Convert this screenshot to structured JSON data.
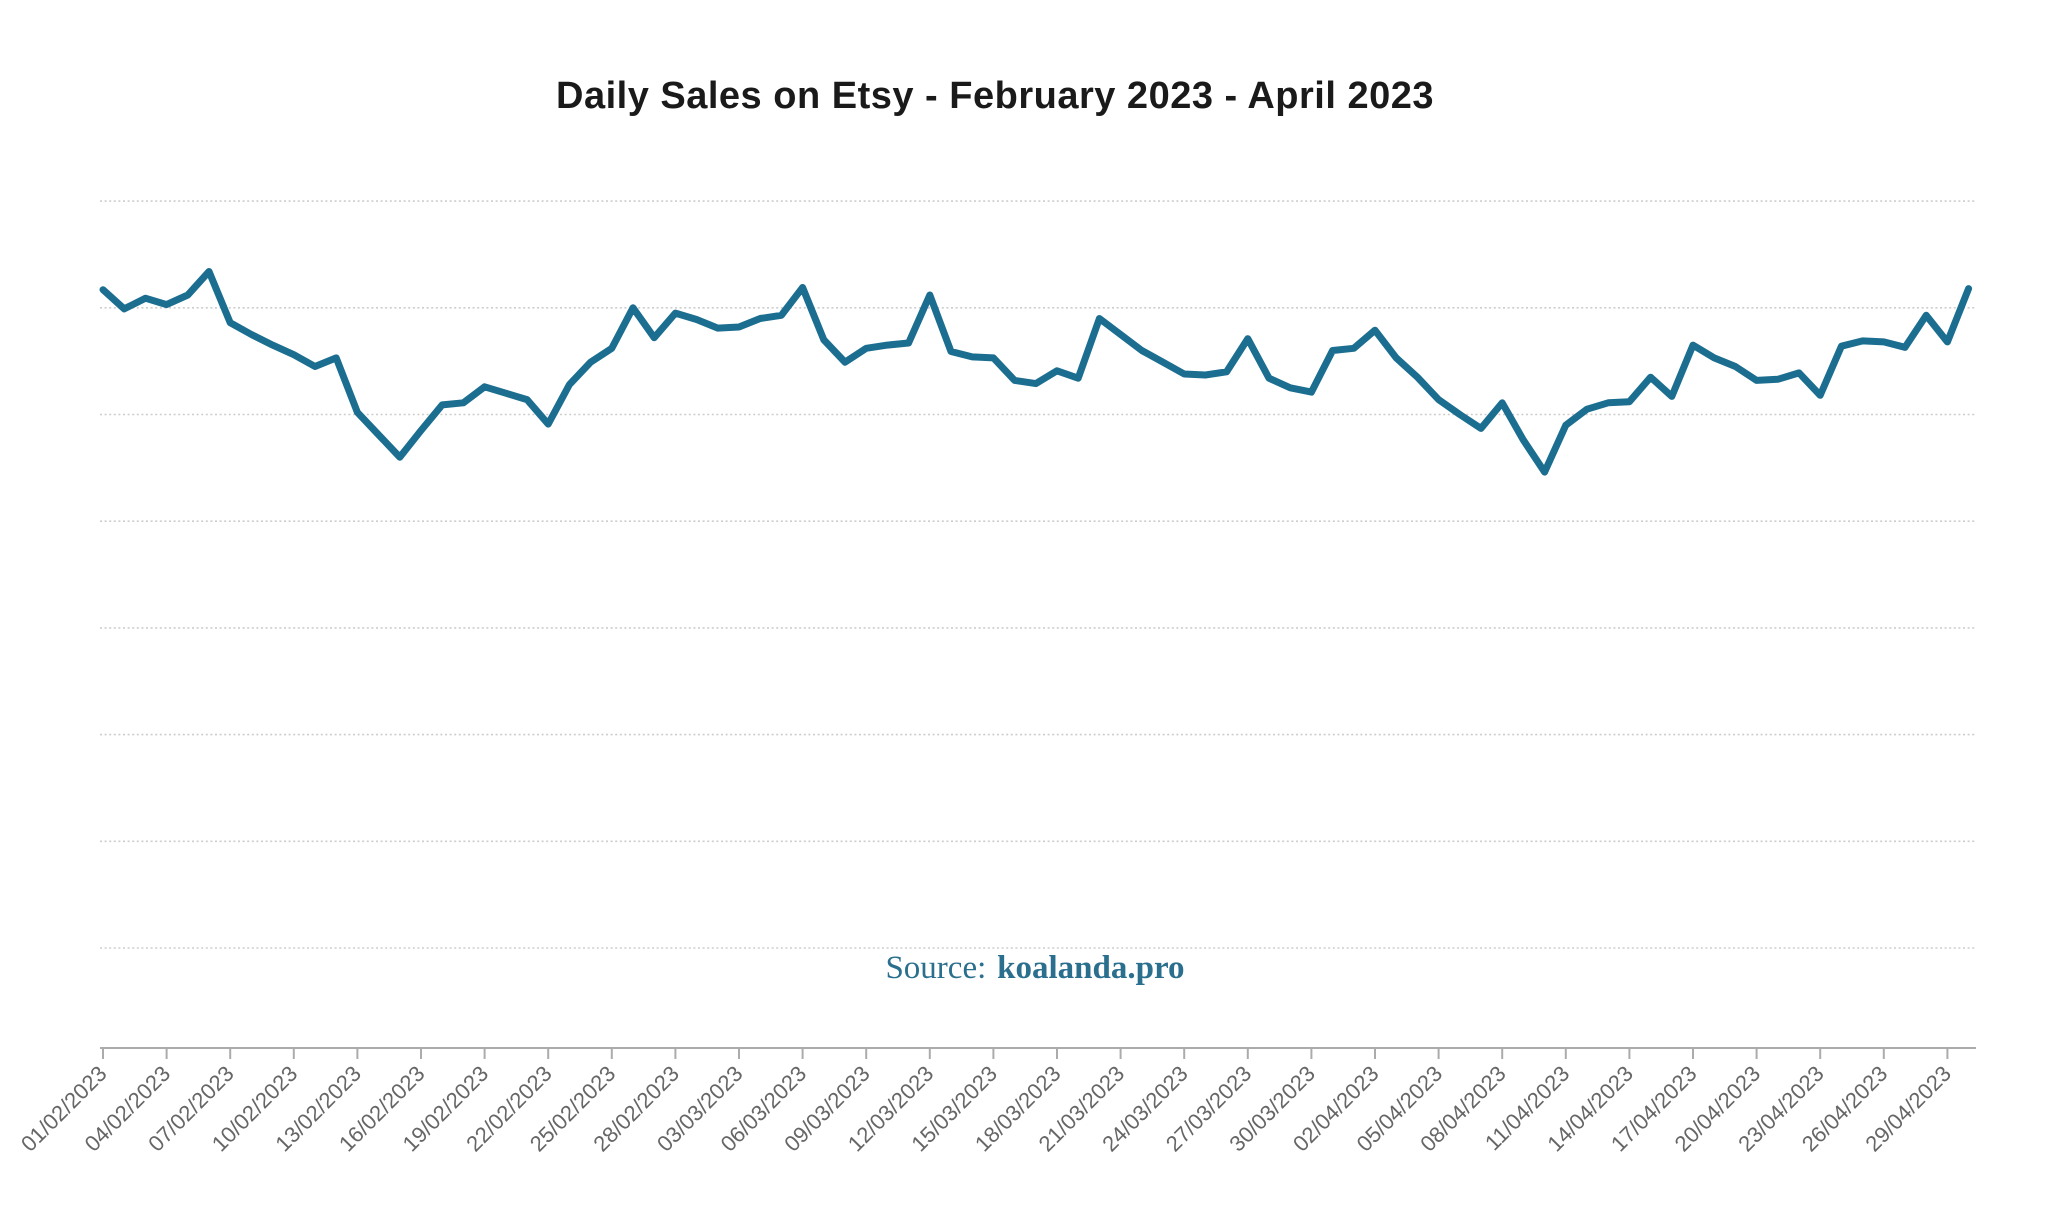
{
  "header": {
    "title": "Daily Sales on Etsy - February 2023 - April 2023"
  },
  "source": {
    "label": "Source:",
    "site": "koalanda.pro"
  },
  "chart_data": {
    "type": "line",
    "title": "Daily Sales on Etsy - February 2023 - April 2023",
    "xlabel": "",
    "ylabel": "",
    "y_axis_labeled": false,
    "y_unit": "unlabeled axis - values estimated in gridline units (one gridline step = 10)",
    "ylim": [
      0,
      80
    ],
    "y_gridlines": [
      0,
      10,
      20,
      30,
      40,
      50,
      60,
      70
    ],
    "grid": "horizontal-dotted",
    "legend": "none",
    "line_color": "#1C6E90",
    "gridline_color": "#CDCDCD",
    "axis_color": "#ABABAB",
    "tick_label_color": "#666666",
    "x_tick_every": 3,
    "x_tick_labels": [
      "01/02/2023",
      "04/02/2023",
      "07/02/2023",
      "10/02/2023",
      "13/02/2023",
      "16/02/2023",
      "19/02/2023",
      "22/02/2023",
      "25/02/2023",
      "28/02/2023",
      "03/03/2023",
      "06/03/2023",
      "09/03/2023",
      "12/03/2023",
      "15/03/2023",
      "18/03/2023",
      "21/03/2023",
      "24/03/2023",
      "27/03/2023",
      "30/03/2023",
      "02/04/2023",
      "05/04/2023",
      "08/04/2023",
      "11/04/2023",
      "14/04/2023",
      "17/04/2023",
      "20/04/2023",
      "23/04/2023",
      "26/04/2023",
      "29/04/2023"
    ],
    "x": [
      "01/02/2023",
      "02/02/2023",
      "03/02/2023",
      "04/02/2023",
      "05/02/2023",
      "06/02/2023",
      "07/02/2023",
      "08/02/2023",
      "09/02/2023",
      "10/02/2023",
      "11/02/2023",
      "12/02/2023",
      "13/02/2023",
      "14/02/2023",
      "15/02/2023",
      "16/02/2023",
      "17/02/2023",
      "18/02/2023",
      "19/02/2023",
      "20/02/2023",
      "21/02/2023",
      "22/02/2023",
      "23/02/2023",
      "24/02/2023",
      "25/02/2023",
      "26/02/2023",
      "27/02/2023",
      "28/02/2023",
      "01/03/2023",
      "02/03/2023",
      "03/03/2023",
      "04/03/2023",
      "05/03/2023",
      "06/03/2023",
      "07/03/2023",
      "08/03/2023",
      "09/03/2023",
      "10/03/2023",
      "11/03/2023",
      "12/03/2023",
      "13/03/2023",
      "14/03/2023",
      "15/03/2023",
      "16/03/2023",
      "17/03/2023",
      "18/03/2023",
      "19/03/2023",
      "20/03/2023",
      "21/03/2023",
      "22/03/2023",
      "23/03/2023",
      "24/03/2023",
      "25/03/2023",
      "26/03/2023",
      "27/03/2023",
      "28/03/2023",
      "29/03/2023",
      "30/03/2023",
      "31/03/2023",
      "01/04/2023",
      "02/04/2023",
      "03/04/2023",
      "04/04/2023",
      "05/04/2023",
      "06/04/2023",
      "07/04/2023",
      "08/04/2023",
      "09/04/2023",
      "10/04/2023",
      "11/04/2023",
      "12/04/2023",
      "13/04/2023",
      "14/04/2023",
      "15/04/2023",
      "16/04/2023",
      "17/04/2023",
      "18/04/2023",
      "19/04/2023",
      "20/04/2023",
      "21/04/2023",
      "22/04/2023",
      "23/04/2023",
      "24/04/2023",
      "25/04/2023",
      "26/04/2023",
      "27/04/2023",
      "28/04/2023",
      "29/04/2023",
      "30/04/2023"
    ],
    "values": [
      61.7,
      59.9,
      60.9,
      60.3,
      61.2,
      63.4,
      58.6,
      57.5,
      56.5,
      55.6,
      54.5,
      55.3,
      50.2,
      48.1,
      46.0,
      48.5,
      50.9,
      51.1,
      52.6,
      52.0,
      51.4,
      49.1,
      52.8,
      54.9,
      56.2,
      60.0,
      57.2,
      59.5,
      58.9,
      58.1,
      58.2,
      59.0,
      59.3,
      61.9,
      57.0,
      54.9,
      56.2,
      56.5,
      56.7,
      61.2,
      55.9,
      55.4,
      55.3,
      53.2,
      52.9,
      54.1,
      53.4,
      59.0,
      57.5,
      56.0,
      54.9,
      53.8,
      53.7,
      54.0,
      57.1,
      53.4,
      52.5,
      52.1,
      56.0,
      56.2,
      57.9,
      55.3,
      53.5,
      51.4,
      50.0,
      48.7,
      51.1,
      47.6,
      44.6,
      49.0,
      50.5,
      51.1,
      51.2,
      53.5,
      51.7,
      56.5,
      55.3,
      54.5,
      53.2,
      53.3,
      53.9,
      51.8,
      56.4,
      56.9,
      56.8,
      56.3,
      59.3,
      56.8,
      61.8
    ]
  }
}
